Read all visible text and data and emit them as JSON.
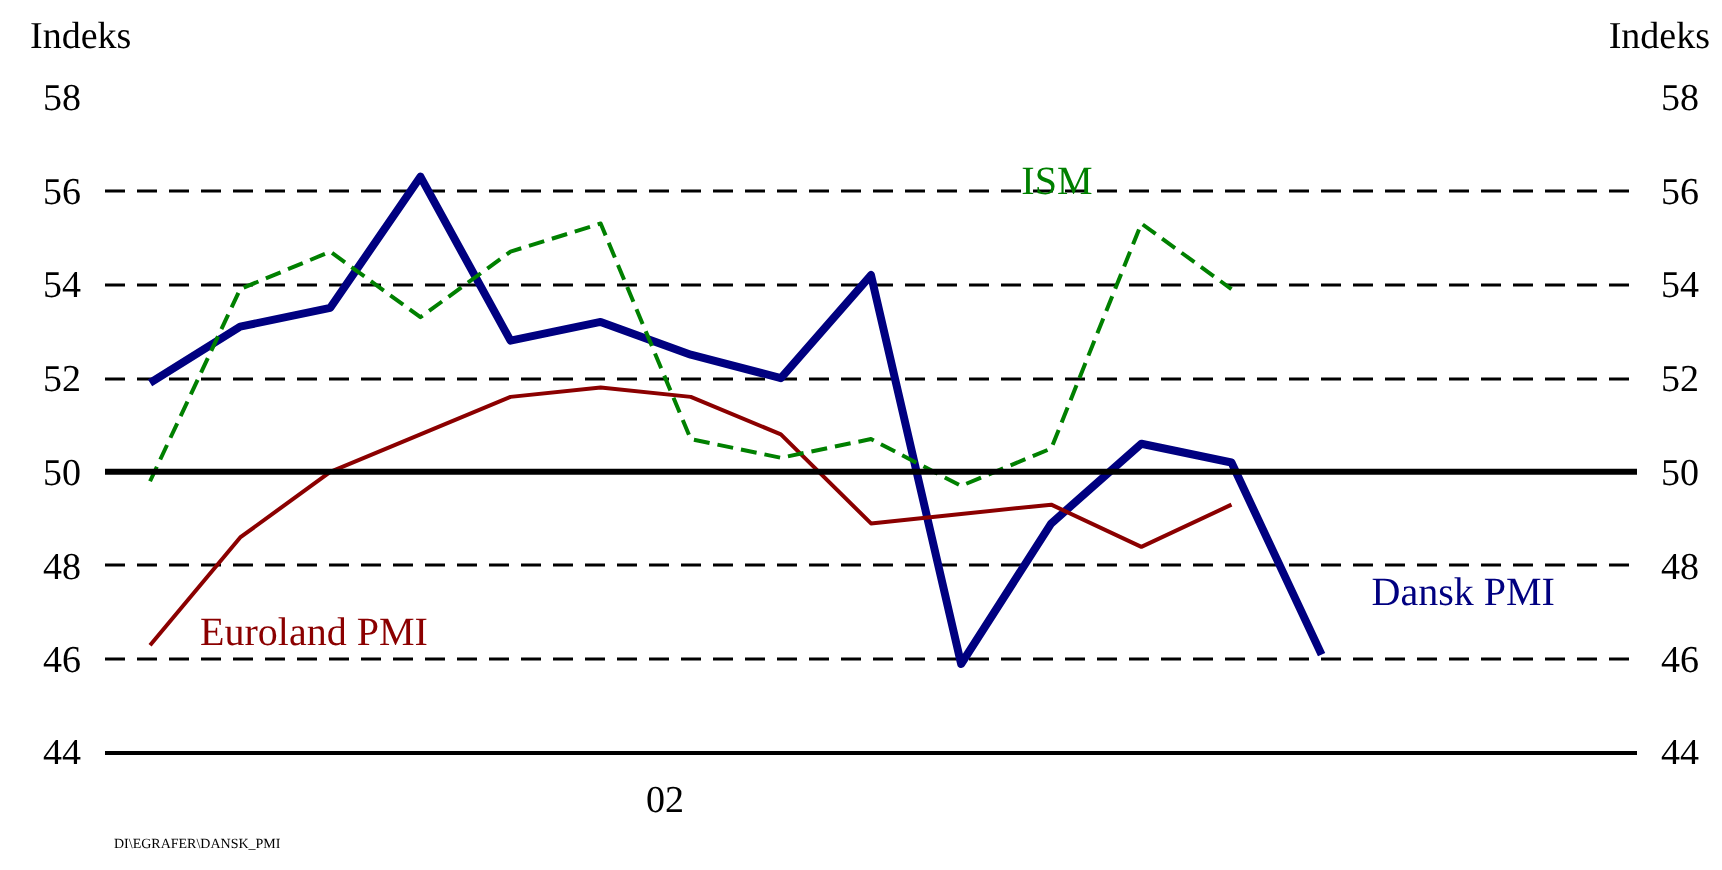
{
  "chart_data": {
    "type": "line",
    "ylabel": "Indeks",
    "y2label": "Indeks",
    "categories": [
      null,
      null,
      null,
      null,
      null,
      null,
      null,
      null,
      null,
      null,
      null,
      null,
      null,
      null
    ],
    "ylim": [
      44,
      58
    ],
    "yticks": [
      44,
      46,
      48,
      50,
      52,
      54,
      56,
      58
    ],
    "y2lim": [
      44,
      58
    ],
    "y2ticks": [
      44,
      46,
      48,
      50,
      52,
      54,
      56,
      58
    ],
    "grid": "y",
    "line_style": "solid",
    "series": [
      {
        "name": "Dansk PMI",
        "color": "#000080",
        "values": [
          51.9,
          53.1,
          53.5,
          56.3,
          52.8,
          53.2,
          52.5,
          52.0,
          54.2,
          45.9,
          48.9,
          50.6,
          50.2,
          46.1
        ]
      },
      {
        "name": "Euroland PMI",
        "color": "#8b0000",
        "values": [
          46.3,
          48.6,
          50.0,
          50.8,
          51.6,
          51.8,
          51.6,
          50.8,
          48.9,
          49.1,
          49.3,
          48.4,
          49.3,
          null
        ]
      },
      {
        "name": "ISM",
        "color": "#008000",
        "line_style": "dashed",
        "values": [
          49.8,
          53.9,
          54.7,
          53.3,
          54.7,
          55.3,
          50.7,
          50.3,
          50.7,
          49.7,
          50.5,
          55.3,
          53.9,
          null
        ]
      }
    ],
    "ref_lines": [
      {
        "axis": "y",
        "value": 50,
        "color": "#000000",
        "line_style": "solid"
      }
    ],
    "annotations": [
      "02",
      "DI\\EGRAFER\\DANSK_PMI"
    ]
  }
}
